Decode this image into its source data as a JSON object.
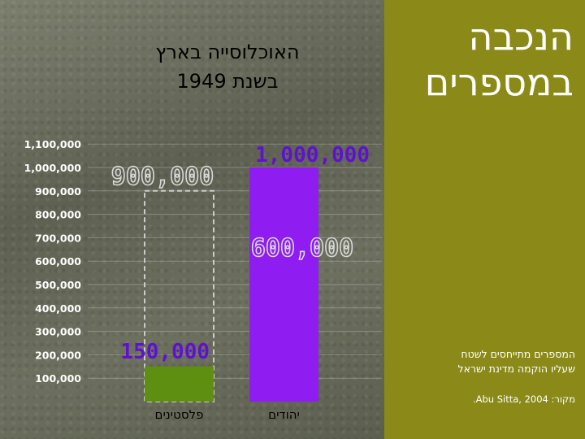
{
  "heading": {
    "line1": "הנכבה",
    "line2": "במספרים"
  },
  "notes": {
    "line1": "המספרים מתייחסים לשטח",
    "line2": "שעליו הוקמה מדינת ישראל",
    "source": "מקור: Abu Sitta, 2004."
  },
  "chart_data": {
    "type": "bar",
    "title_line1": "האוכלוסייה בארץ",
    "title_line2": "בשנת 1949",
    "categories": [
      "פלסטינים",
      "יהודים"
    ],
    "values": [
      150000,
      1000000
    ],
    "value_labels": [
      "150,000",
      "1,000,000"
    ],
    "previous_values": [
      900000,
      600000
    ],
    "previous_labels": [
      "900,000",
      "600,000"
    ],
    "yticks": [
      {
        "value": 100000,
        "label": "100,000"
      },
      {
        "value": 200000,
        "label": "200,000"
      },
      {
        "value": 300000,
        "label": "300,000"
      },
      {
        "value": 400000,
        "label": "400,000"
      },
      {
        "value": 500000,
        "label": "500,000"
      },
      {
        "value": 600000,
        "label": "600,000"
      },
      {
        "value": 700000,
        "label": "700,000"
      },
      {
        "value": 800000,
        "label": "800,000"
      },
      {
        "value": 900000,
        "label": "900,000"
      },
      {
        "value": 1000000,
        "label": "1,000,000"
      },
      {
        "value": 1100000,
        "label": "1,100,000"
      }
    ],
    "ylim": [
      0,
      1100000
    ],
    "colors": {
      "palestinians": "#5f8f10",
      "jews": "#8f1cf0",
      "value_label": "#5e12d0",
      "outline": "#cccccc"
    }
  }
}
